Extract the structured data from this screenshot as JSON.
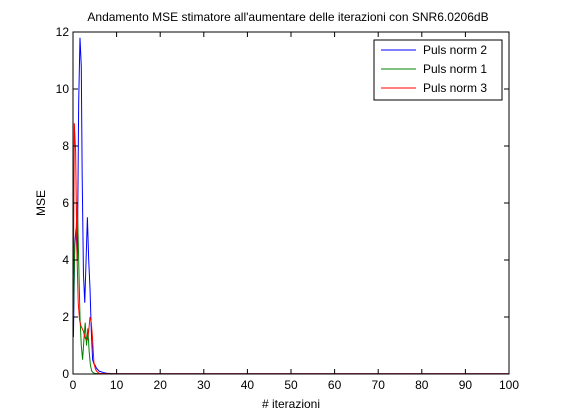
{
  "chart_data": {
    "type": "line",
    "title": "Andamento MSE stimatore all'aumentare delle iterazioni con SNR6.0206dB",
    "xlabel": "# iterazioni",
    "ylabel": "MSE",
    "xlim": [
      0,
      100
    ],
    "ylim": [
      0,
      12
    ],
    "xticks": [
      0,
      10,
      20,
      30,
      40,
      50,
      60,
      70,
      80,
      90,
      100
    ],
    "yticks": [
      0,
      2,
      4,
      6,
      8,
      10,
      12
    ],
    "grid": false,
    "legend_position": "top-right",
    "series": [
      {
        "name": "Puls norm 2",
        "color": "#0000ff",
        "x": [
          0.1,
          0.4,
          0.7,
          1.0,
          1.3,
          1.6,
          1.9,
          2.1,
          2.4,
          2.7,
          3.0,
          3.3,
          3.6,
          3.9,
          4.2,
          4.5,
          4.8,
          5.1,
          5.4,
          6.0,
          7.0,
          8.0,
          10,
          20,
          30,
          40,
          50,
          60,
          70,
          80,
          90,
          100
        ],
        "y": [
          1.3,
          4.6,
          5.1,
          4.0,
          9.5,
          11.8,
          10.8,
          7.0,
          3.5,
          2.5,
          4.0,
          5.5,
          4.0,
          3.0,
          1.5,
          0.5,
          0.35,
          0.3,
          0.2,
          0.1,
          0.05,
          0.02,
          0.01,
          0.01,
          0.01,
          0.01,
          0.01,
          0.01,
          0.01,
          0.01,
          0.01,
          0.01
        ]
      },
      {
        "name": "Puls norm 1",
        "color": "#008000",
        "x": [
          0.1,
          0.4,
          0.7,
          1.0,
          1.3,
          1.6,
          1.9,
          2.2,
          2.5,
          2.8,
          3.1,
          3.4,
          3.7,
          4.0,
          4.3,
          4.6,
          5.0,
          6.0,
          8.0,
          10,
          20,
          30,
          40,
          50,
          60,
          70,
          80,
          90,
          100
        ],
        "y": [
          2.0,
          4.5,
          5.0,
          6.0,
          4.0,
          2.0,
          1.0,
          0.5,
          1.2,
          1.8,
          1.0,
          1.6,
          0.8,
          0.3,
          0.1,
          0.05,
          0.02,
          0.01,
          0.005,
          0.005,
          0.005,
          0.005,
          0.005,
          0.005,
          0.005,
          0.005,
          0.005,
          0.005,
          0.005
        ]
      },
      {
        "name": "Puls norm 3",
        "color": "#ff0000",
        "x": [
          0.1,
          0.3,
          0.6,
          0.9,
          1.2,
          1.5,
          1.8,
          2.1,
          2.4,
          2.7,
          3.0,
          3.3,
          3.6,
          3.9,
          4.2,
          4.5,
          4.8,
          5.1,
          5.4,
          6.0,
          8.0,
          10,
          20,
          30,
          40,
          50,
          60,
          70,
          80,
          90,
          100
        ],
        "y": [
          3.5,
          8.8,
          7.8,
          4.3,
          2.5,
          1.9,
          1.7,
          1.6,
          1.5,
          1.3,
          1.2,
          1.2,
          1.5,
          2.0,
          1.8,
          1.2,
          0.4,
          0.2,
          0.1,
          0.02,
          0.01,
          0.01,
          0.01,
          0.01,
          0.01,
          0.01,
          0.01,
          0.01,
          0.01,
          0.01,
          0.01
        ]
      }
    ]
  }
}
